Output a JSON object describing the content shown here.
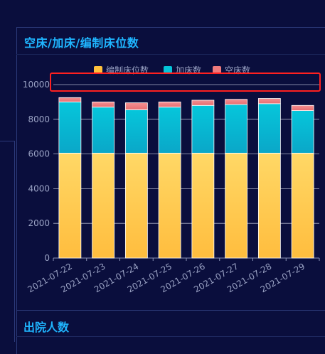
{
  "panel": {
    "title": "空床/加床/编制床位数",
    "next_title": "出院人数"
  },
  "chart_data": {
    "type": "bar",
    "stacked": true,
    "title": "空床/加床/编制床位数",
    "categories": [
      "2021-07-22",
      "2021-07-23",
      "2021-07-24",
      "2021-07-25",
      "2021-07-26",
      "2021-07-27",
      "2021-07-28",
      "2021-07-29"
    ],
    "series": [
      {
        "name": "编制床位数",
        "values": [
          6050,
          6050,
          6050,
          6050,
          6050,
          6050,
          6050,
          6050
        ],
        "color": "#ffc13c"
      },
      {
        "name": "加床数",
        "values": [
          2950,
          2650,
          2500,
          2650,
          2750,
          2800,
          2850,
          2450
        ],
        "color": "#04c4d9"
      },
      {
        "name": "空床数",
        "values": [
          250,
          300,
          400,
          300,
          300,
          300,
          300,
          300
        ],
        "color": "#ef7b7d"
      }
    ],
    "yticks": [
      0,
      2000,
      4000,
      6000,
      8000,
      10000
    ],
    "ylim": [
      0,
      11000
    ],
    "legend_position": "top-center",
    "grid": true
  }
}
